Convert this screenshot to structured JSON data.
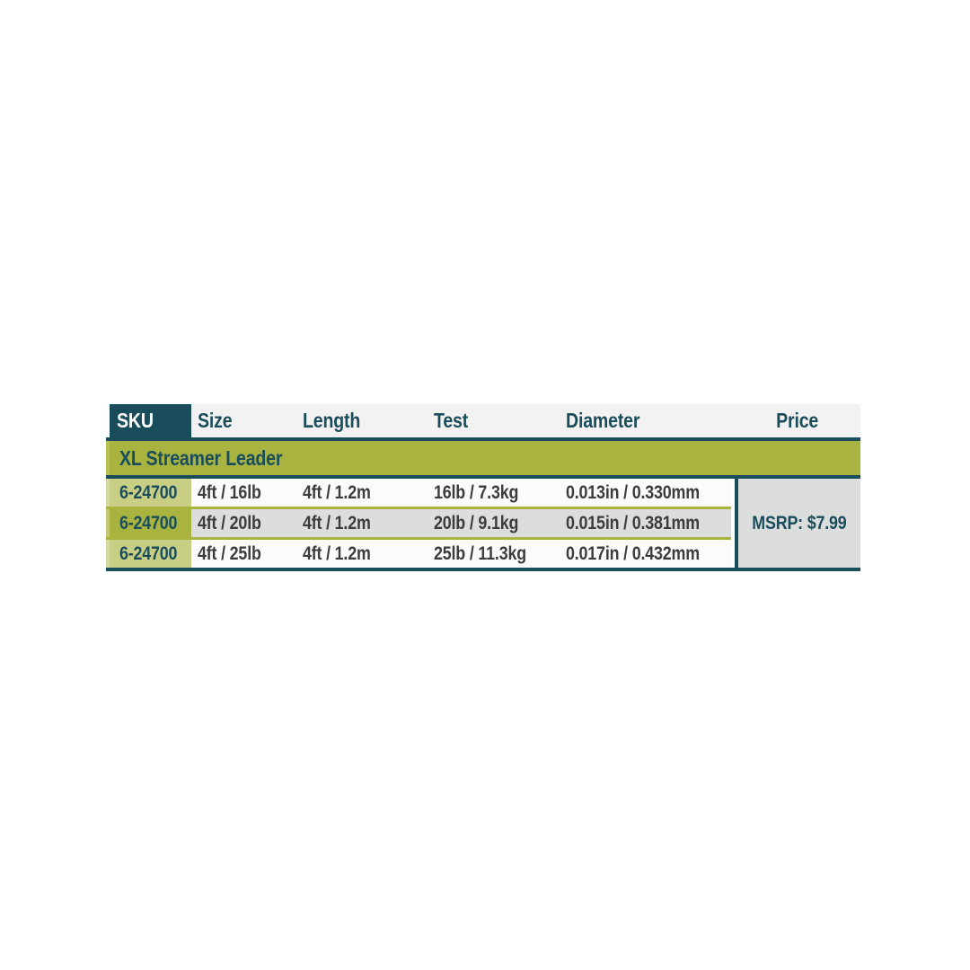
{
  "table": {
    "headers": [
      "SKU",
      "Size",
      "Length",
      "Test",
      "Diameter",
      "Price"
    ],
    "group_label": "XL Streamer Leader",
    "rows": [
      {
        "sku": "6-24700",
        "size": "4ft / 16lb",
        "length": "4ft / 1.2m",
        "test": "16lb / 7.3kg",
        "diameter": "0.013in / 0.330mm"
      },
      {
        "sku": "6-24700",
        "size": "4ft / 20lb",
        "length": "4ft / 1.2m",
        "test": "20lb / 9.1kg",
        "diameter": "0.015in / 0.381mm"
      },
      {
        "sku": "6-24700",
        "size": "4ft / 25lb",
        "length": "4ft / 1.2m",
        "test": "25lb / 11.3kg",
        "diameter": "0.017in / 0.432mm"
      }
    ],
    "price_label": "MSRP: $7.99",
    "colors": {
      "teal": "#1A4D5C",
      "olive": "#A9B440",
      "olive_light_cell": "#C9CE85",
      "row_gray": "#DCDEDE",
      "row_white": "#FBFBFB",
      "header_strip": "#F2F2F2",
      "sku_header_text": "#FFFFFF",
      "data_text": "#3C3C3E",
      "page_background": "#FFFFFF"
    }
  },
  "chart_data": {
    "type": "table",
    "title": "XL Streamer Leader",
    "columns": [
      "SKU",
      "Size",
      "Length",
      "Test",
      "Diameter",
      "Price"
    ],
    "rows": [
      [
        "6-24700",
        "4ft / 16lb",
        "4ft / 1.2m",
        "16lb / 7.3kg",
        "0.013in / 0.330mm",
        "MSRP: $7.99"
      ],
      [
        "6-24700",
        "4ft / 20lb",
        "4ft / 1.2m",
        "20lb / 9.1kg",
        "0.015in / 0.381mm",
        "MSRP: $7.99"
      ],
      [
        "6-24700",
        "4ft / 25lb",
        "4ft / 1.2m",
        "25lb / 11.3kg",
        "0.017in / 0.432mm",
        "MSRP: $7.99"
      ]
    ],
    "layout_hints": {
      "price_cell_merged_across_rows": true,
      "row_striping": [
        "white",
        "gray",
        "white"
      ],
      "sku_column_shading": [
        "light-olive",
        "olive",
        "light-olive"
      ]
    }
  }
}
